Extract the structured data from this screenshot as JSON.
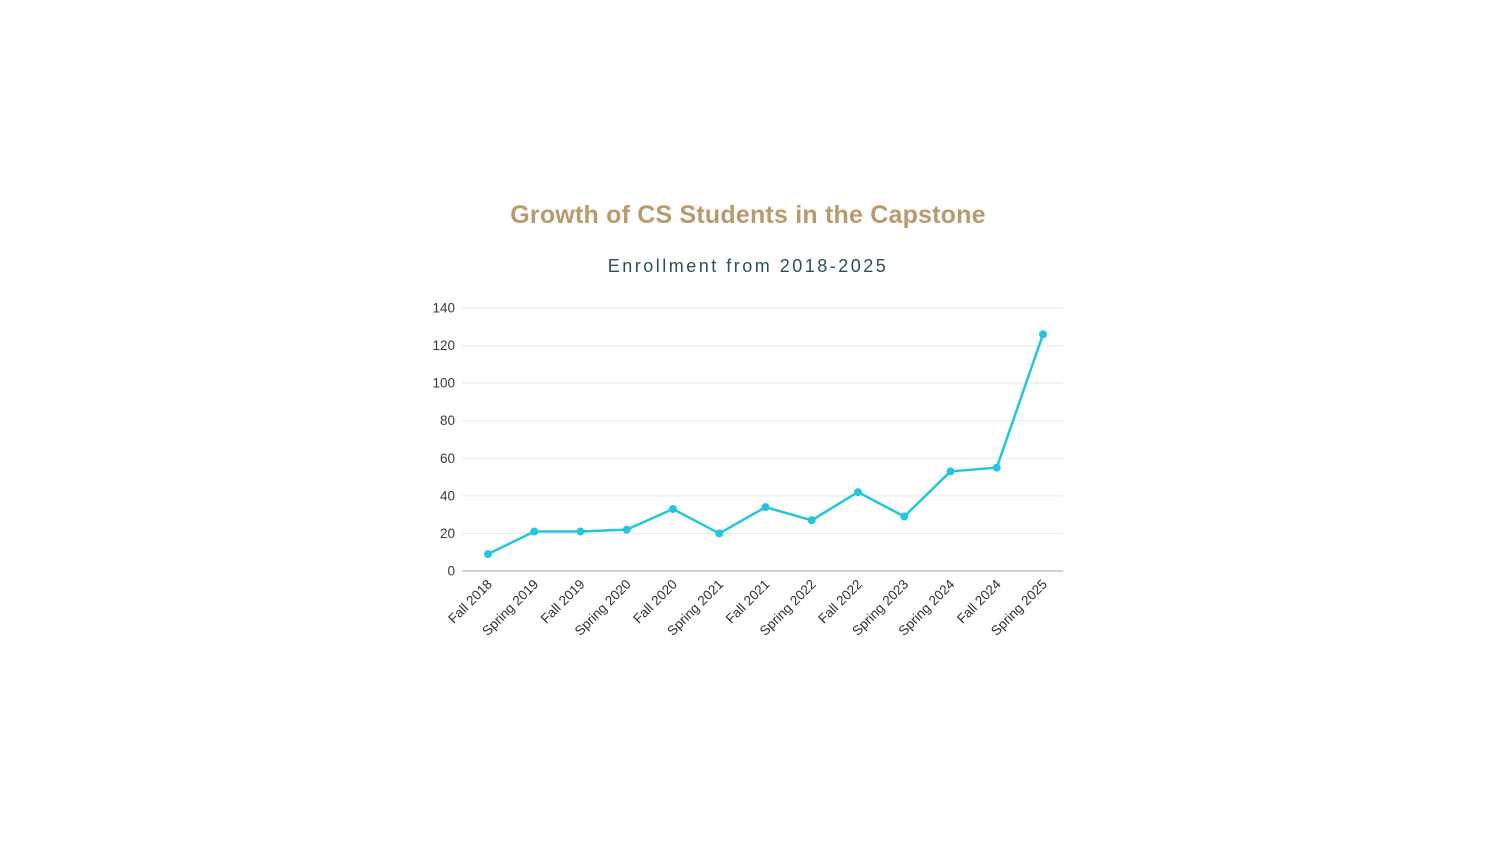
{
  "page": {
    "background_color": "#ffffff"
  },
  "chart": {
    "title": "Growth of CS Students in the Capstone",
    "subtitle": "Enrollment from 2018-2025",
    "title_color": "#b79b6e",
    "subtitle_color": "#2e4d5c"
  },
  "chart_data": {
    "type": "line",
    "title": "Growth of CS Students in the Capstone",
    "subtitle": "Enrollment from 2018-2025",
    "categories": [
      "Fall 2018",
      "Spring 2019",
      "Fall 2019",
      "Spring 2020",
      "Fall 2020",
      "Spring 2021",
      "Fall 2021",
      "Spring 2022",
      "Fall 2022",
      "Spring 2023",
      "Spring 2024",
      "Fall 2024",
      "Spring 2025"
    ],
    "series": [
      {
        "name": "Enrollment",
        "values": [
          9,
          21,
          21,
          22,
          33,
          20,
          34,
          27,
          42,
          29,
          53,
          55,
          126
        ]
      }
    ],
    "xlabel": "",
    "ylabel": "",
    "ylim": [
      0,
      140
    ],
    "ytick_step": 20,
    "yticks": [
      0,
      20,
      40,
      60,
      80,
      100,
      120,
      140
    ],
    "grid": "horizontal",
    "legend": "none",
    "x_label_rotation_deg": 45,
    "line_color": "#25c5dc",
    "point_color": "#25c5dc",
    "gridline_color": "#e8e8e8",
    "axis_line_color": "#c4c4c4",
    "tick_label_color": "#3a3a3a"
  }
}
